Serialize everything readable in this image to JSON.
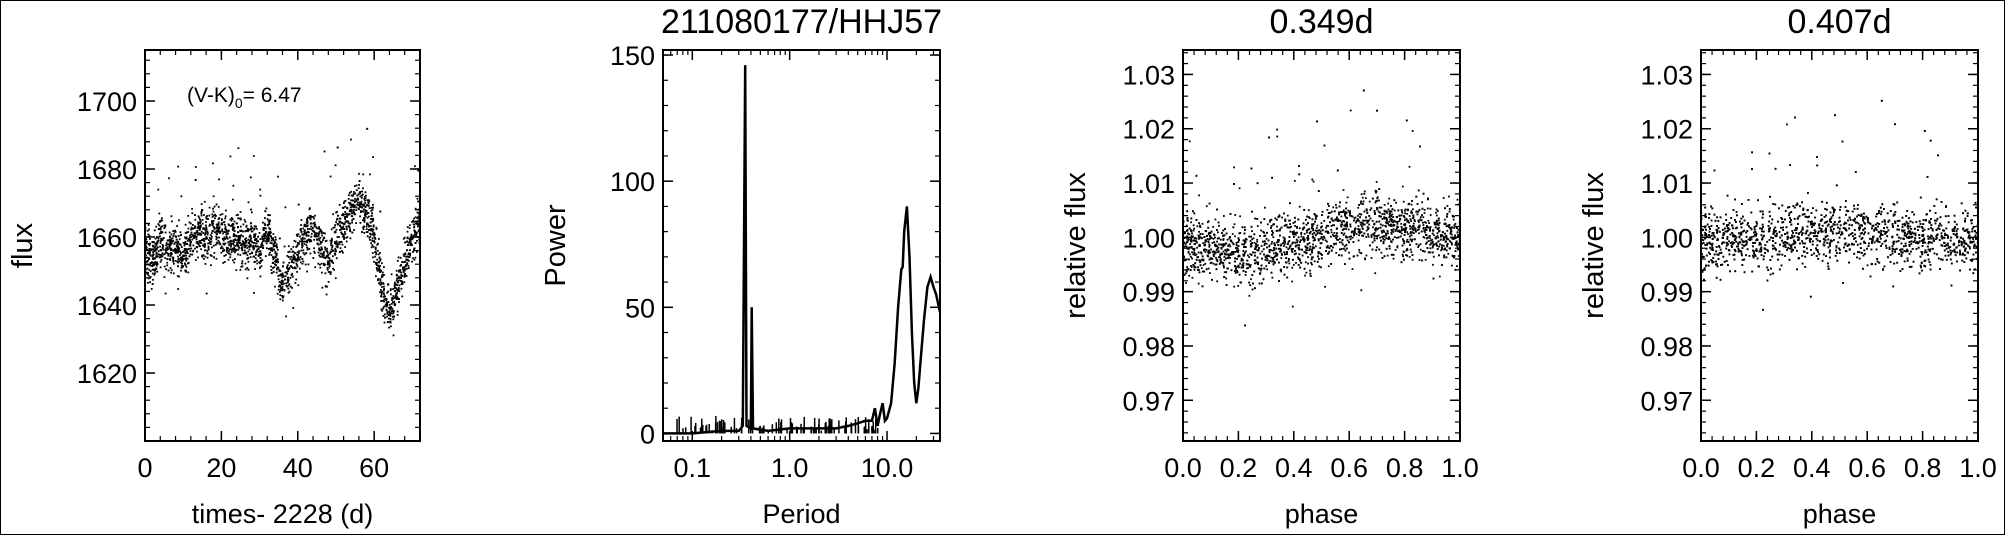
{
  "chart_data": [
    {
      "type": "scatter",
      "title": "",
      "xlabel": "times- 2228 (d)",
      "ylabel": "flux",
      "xlim": [
        0,
        72
      ],
      "ylim": [
        1600,
        1715
      ],
      "xticks": [
        "0",
        "20",
        "40",
        "60"
      ],
      "xtick_values": [
        0,
        20,
        40,
        60
      ],
      "yticks": [
        "1620",
        "1640",
        "1660",
        "1680",
        "1700"
      ],
      "ytick_values": [
        1620,
        1640,
        1660,
        1680,
        1700
      ],
      "annotation": {
        "prefix": "(V-K)",
        "subscript": "0",
        "suffix": "= 6.47"
      },
      "series": [
        {
          "points": [
            [
              0,
              1658
            ],
            [
              2,
              1652
            ],
            [
              4,
              1660
            ],
            [
              6,
              1655
            ],
            [
              8,
              1657
            ],
            [
              10,
              1654
            ],
            [
              12,
              1659
            ],
            [
              14,
              1662
            ],
            [
              16,
              1660
            ],
            [
              18,
              1663
            ],
            [
              20,
              1661
            ],
            [
              22,
              1658
            ],
            [
              24,
              1660
            ],
            [
              26,
              1657
            ],
            [
              28,
              1659
            ],
            [
              30,
              1656
            ],
            [
              32,
              1662
            ],
            [
              34,
              1655
            ],
            [
              35,
              1650
            ],
            [
              36,
              1646
            ],
            [
              38,
              1651
            ],
            [
              40,
              1655
            ],
            [
              42,
              1660
            ],
            [
              44,
              1664
            ],
            [
              46,
              1657
            ],
            [
              48,
              1652
            ],
            [
              50,
              1660
            ],
            [
              52,
              1664
            ],
            [
              54,
              1668
            ],
            [
              56,
              1671
            ],
            [
              58,
              1668
            ],
            [
              60,
              1660
            ],
            [
              61,
              1652
            ],
            [
              62,
              1646
            ],
            [
              63,
              1640
            ],
            [
              64,
              1638
            ],
            [
              66,
              1645
            ],
            [
              68,
              1652
            ],
            [
              70,
              1660
            ],
            [
              72,
              1664
            ]
          ],
          "scatter_sigma": 5
        }
      ]
    },
    {
      "type": "line",
      "title": "211080177/HHJ57",
      "xlabel": "Period",
      "ylabel": "Power",
      "xscale": "log",
      "xlim": [
        0.05,
        35
      ],
      "ylim": [
        -3,
        152
      ],
      "xticks": [
        "0.1",
        "1.0",
        "10.0"
      ],
      "xtick_values": [
        0.1,
        1.0,
        10.0
      ],
      "yticks": [
        "0",
        "50",
        "100",
        "150"
      ],
      "ytick_values": [
        0,
        50,
        100,
        150
      ],
      "series": [
        {
          "x": [
            0.05,
            0.1,
            0.2,
            0.3,
            0.33,
            0.349,
            0.36,
            0.4,
            0.407,
            0.42,
            0.6,
            1.0,
            2.0,
            3.0,
            4.0,
            5.0,
            6.0,
            7.0,
            7.5,
            8.0,
            8.5,
            9.0,
            9.5,
            10.0,
            11.0,
            12.0,
            13.0,
            14.0,
            14.5,
            15.0,
            16.0,
            17.0,
            18.0,
            19.0,
            20.0,
            21.0,
            22.0,
            24.0,
            26.0,
            28.0,
            30.0,
            32.0,
            35.0
          ],
          "y": [
            0,
            0,
            1,
            1,
            3,
            146,
            3,
            2,
            50,
            2,
            1,
            2,
            2,
            2,
            3,
            4,
            5,
            5,
            10,
            3,
            8,
            12,
            5,
            6,
            12,
            28,
            50,
            65,
            66,
            80,
            90,
            70,
            40,
            20,
            12,
            18,
            28,
            45,
            58,
            62,
            58,
            55,
            48
          ]
        }
      ]
    },
    {
      "type": "scatter",
      "title": "0.349d",
      "xlabel": "phase",
      "ylabel": "relative flux",
      "xlim": [
        0,
        1
      ],
      "ylim": [
        0.9625,
        1.0345
      ],
      "xticks": [
        "0.0",
        "0.2",
        "0.4",
        "0.6",
        "0.8",
        "1.0"
      ],
      "xtick_values": [
        0,
        0.2,
        0.4,
        0.6,
        0.8,
        1.0
      ],
      "yticks": [
        "0.97",
        "0.98",
        "0.99",
        "1.00",
        "1.01",
        "1.02",
        "1.03"
      ],
      "ytick_values": [
        0.97,
        0.98,
        0.99,
        1.0,
        1.01,
        1.02,
        1.03
      ],
      "series": [
        {
          "points": [
            [
              0.0,
              0.999
            ],
            [
              0.1,
              0.998
            ],
            [
              0.2,
              0.997
            ],
            [
              0.3,
              0.998
            ],
            [
              0.4,
              0.999
            ],
            [
              0.5,
              1.0
            ],
            [
              0.6,
              1.002
            ],
            [
              0.7,
              1.003
            ],
            [
              0.8,
              1.002
            ],
            [
              0.9,
              1.001
            ],
            [
              1.0,
              1.0
            ]
          ],
          "scatter_sigma": 0.004
        }
      ]
    },
    {
      "type": "scatter",
      "title": "0.407d",
      "xlabel": "phase",
      "ylabel": "relative flux",
      "xlim": [
        0,
        1
      ],
      "ylim": [
        0.9625,
        1.0345
      ],
      "xticks": [
        "0.0",
        "0.2",
        "0.4",
        "0.6",
        "0.8",
        "1.0"
      ],
      "xtick_values": [
        0,
        0.2,
        0.4,
        0.6,
        0.8,
        1.0
      ],
      "yticks": [
        "0.97",
        "0.98",
        "0.99",
        "1.00",
        "1.01",
        "1.02",
        "1.03"
      ],
      "ytick_values": [
        0.97,
        0.98,
        0.99,
        1.0,
        1.01,
        1.02,
        1.03
      ],
      "series": [
        {
          "points": [
            [
              0.0,
              0.9995
            ],
            [
              0.1,
              0.9995
            ],
            [
              0.2,
              1.0
            ],
            [
              0.3,
              1.0005
            ],
            [
              0.4,
              1.0008
            ],
            [
              0.5,
              1.001
            ],
            [
              0.6,
              1.0008
            ],
            [
              0.7,
              1.0005
            ],
            [
              0.8,
              1.0
            ],
            [
              0.9,
              0.9997
            ],
            [
              1.0,
              0.9995
            ]
          ],
          "scatter_sigma": 0.004
        }
      ]
    }
  ]
}
